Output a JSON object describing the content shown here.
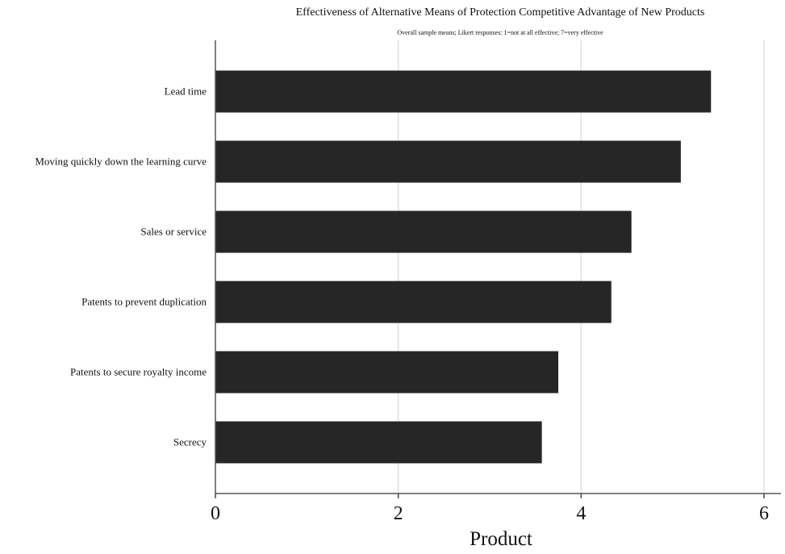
{
  "chart_data": {
    "type": "bar",
    "orientation": "horizontal",
    "title": "Effectiveness of Alternative Means of Protection Competitive Advantage of New Products",
    "subtitle": "Overall sample means; Likert responses: 1=not at all effective; 7=very effective",
    "categories": [
      "Lead time",
      "Moving quickly down the learning curve",
      "Sales or service",
      "Patents to prevent duplication",
      "Patents to secure royalty income",
      "Secrecy"
    ],
    "values": [
      5.42,
      5.09,
      4.55,
      4.33,
      3.75,
      3.57
    ],
    "xlabel": "Product",
    "ylabel": "",
    "xlim": [
      0,
      6
    ],
    "xticks": [
      "0",
      "2",
      "4",
      "6"
    ],
    "grid": true,
    "bar_color": "#262626",
    "grid_color": "#e0e0e0"
  }
}
